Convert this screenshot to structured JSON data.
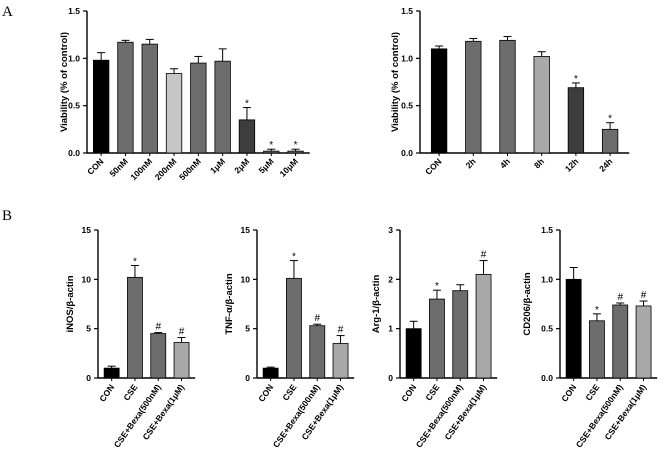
{
  "panel_labels": [
    "A",
    "B"
  ],
  "colors": {
    "black": "#000000",
    "dark": "#3d3d3d",
    "mid": "#6d6d6d",
    "light": "#a9a9a9",
    "lighter": "#c6c6c6"
  },
  "chart_data": [
    {
      "id": "dose",
      "type": "bar",
      "title": "",
      "ylabel": "Viability (% of control)",
      "ylim": [
        0,
        1.5
      ],
      "yticks": [
        "0.0",
        "0.5",
        "1.0",
        "1.5"
      ],
      "categories": [
        "CON",
        "50nM",
        "100nM",
        "200nM",
        "500nM",
        "1μM",
        "2μM",
        "5μM",
        "10μM"
      ],
      "values": [
        0.98,
        1.17,
        1.15,
        0.84,
        0.95,
        0.97,
        0.35,
        0.02,
        0.02
      ],
      "errors": [
        0.08,
        0.02,
        0.05,
        0.05,
        0.07,
        0.13,
        0.13,
        0.02,
        0.02
      ],
      "marks": [
        "",
        "",
        "",
        "",
        "",
        "",
        "*",
        "*",
        "*"
      ],
      "colors": [
        "#000000",
        "#6d6d6d",
        "#6d6d6d",
        "#c6c6c6",
        "#6d6d6d",
        "#6d6d6d",
        "#3d3d3d",
        "#6d6d6d",
        "#6d6d6d"
      ]
    },
    {
      "id": "time",
      "type": "bar",
      "title": "",
      "ylabel": "Viability (% of control)",
      "ylim": [
        0,
        1.5
      ],
      "yticks": [
        "0.0",
        "0.5",
        "1.0",
        "1.5"
      ],
      "categories": [
        "CON",
        "2h",
        "4h",
        "8h",
        "12h",
        "24h"
      ],
      "values": [
        1.1,
        1.18,
        1.19,
        1.02,
        0.69,
        0.25
      ],
      "errors": [
        0.03,
        0.03,
        0.04,
        0.05,
        0.05,
        0.07
      ],
      "marks": [
        "",
        "",
        "",
        "",
        "*",
        "*"
      ],
      "colors": [
        "#000000",
        "#6d6d6d",
        "#6d6d6d",
        "#a9a9a9",
        "#3d3d3d",
        "#6d6d6d"
      ]
    },
    {
      "id": "inos",
      "type": "bar",
      "title": "",
      "ylabel": "iNOS/β-actin",
      "ylim": [
        0,
        15
      ],
      "yticks": [
        "0",
        "5",
        "10",
        "15"
      ],
      "categories": [
        "CON",
        "CSE",
        "CSE+Bexa(500nM)",
        "CSE+Bexa(1μM)"
      ],
      "values": [
        1.0,
        10.2,
        4.5,
        3.6
      ],
      "errors": [
        0.2,
        1.2,
        0.1,
        0.5
      ],
      "marks": [
        "",
        "*",
        "#",
        "#"
      ],
      "colors": [
        "#000000",
        "#6d6d6d",
        "#6d6d6d",
        "#a9a9a9"
      ]
    },
    {
      "id": "tnf",
      "type": "bar",
      "title": "",
      "ylabel": "TNF-α/β-actin",
      "ylim": [
        0,
        15
      ],
      "yticks": [
        "0",
        "5",
        "10",
        "15"
      ],
      "categories": [
        "CON",
        "CSE",
        "CSE+Bexa(500nM)",
        "CSE+Bexa(1μM)"
      ],
      "values": [
        1.0,
        10.1,
        5.3,
        3.5
      ],
      "errors": [
        0.1,
        1.8,
        0.15,
        0.8
      ],
      "marks": [
        "",
        "*",
        "#",
        "#"
      ],
      "colors": [
        "#000000",
        "#6d6d6d",
        "#6d6d6d",
        "#a9a9a9"
      ]
    },
    {
      "id": "arg1",
      "type": "bar",
      "title": "",
      "ylabel": "Arg-1/β-actin",
      "ylim": [
        0,
        3
      ],
      "yticks": [
        "0",
        "1",
        "2",
        "3"
      ],
      "categories": [
        "CON",
        "CSE",
        "CSE+Bexa(500nM)",
        "CSE+Bexa(1μM)"
      ],
      "values": [
        1.0,
        1.6,
        1.77,
        2.1
      ],
      "errors": [
        0.15,
        0.18,
        0.12,
        0.28
      ],
      "marks": [
        "",
        "*",
        "",
        "#"
      ],
      "colors": [
        "#000000",
        "#6d6d6d",
        "#6d6d6d",
        "#a9a9a9"
      ]
    },
    {
      "id": "cd206",
      "type": "bar",
      "title": "",
      "ylabel": "CD206/β-actin",
      "ylim": [
        0,
        1.5
      ],
      "yticks": [
        "0.0",
        "0.5",
        "1.0",
        "1.5"
      ],
      "categories": [
        "CON",
        "CSE",
        "CSE+Bexa(500nM)",
        "CSE+Bexa(1μM)"
      ],
      "values": [
        1.0,
        0.58,
        0.74,
        0.73
      ],
      "errors": [
        0.12,
        0.07,
        0.02,
        0.05
      ],
      "marks": [
        "",
        "*",
        "#",
        "#"
      ],
      "colors": [
        "#000000",
        "#6d6d6d",
        "#6d6d6d",
        "#a9a9a9"
      ]
    }
  ]
}
